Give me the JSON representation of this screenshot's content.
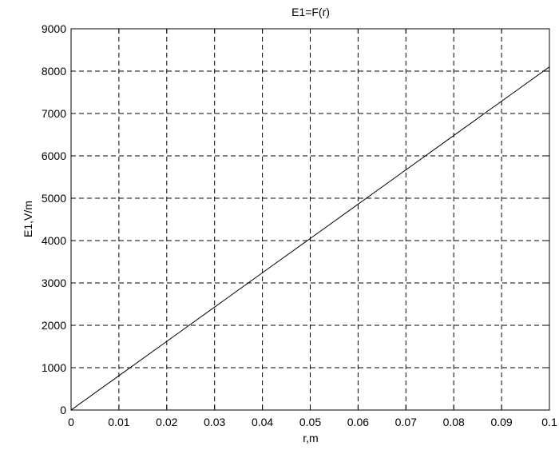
{
  "chart_data": {
    "type": "line",
    "title": "E1=F(r)",
    "xlabel": "r,m",
    "ylabel": "E1,V/m",
    "xlim": [
      0,
      0.1
    ],
    "ylim": [
      0,
      9000
    ],
    "x_ticks": [
      "0",
      "0.01",
      "0.02",
      "0.03",
      "0.04",
      "0.05",
      "0.06",
      "0.07",
      "0.08",
      "0.09",
      "0.1"
    ],
    "y_ticks": [
      "0",
      "1000",
      "2000",
      "3000",
      "4000",
      "5000",
      "6000",
      "7000",
      "8000",
      "9000"
    ],
    "grid": true,
    "series": [
      {
        "color": "#000000",
        "x": [
          0,
          0.01,
          0.02,
          0.03,
          0.04,
          0.05,
          0.06,
          0.07,
          0.08,
          0.09,
          0.1
        ],
        "y": [
          0,
          810,
          1620,
          2430,
          3240,
          4050,
          4860,
          5670,
          6480,
          7290,
          8100
        ]
      }
    ]
  }
}
